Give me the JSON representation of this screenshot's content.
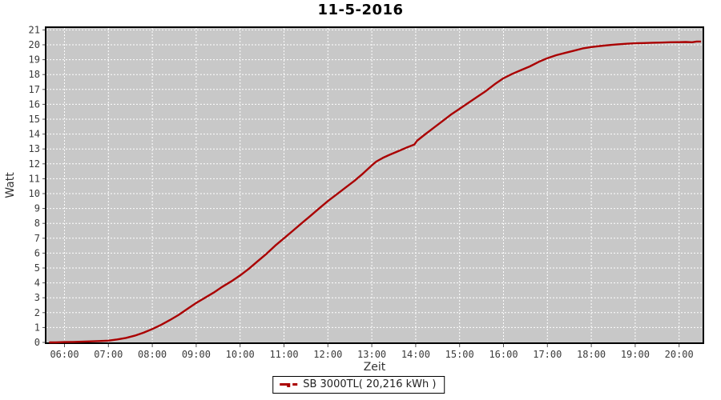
{
  "title": "11-5-2016",
  "axes": {
    "x_label": "Zeit",
    "y_label": "Watt"
  },
  "legend": {
    "label": "SB 3000TL( 20,216 kWh )"
  },
  "colors": {
    "outer_bg": "#ffffff",
    "plot_bg": "#c8c8c8",
    "grid": "#ffffff",
    "plot_border": "#000000",
    "series_line": "#aa0000",
    "tick_text": "#3a3a3a",
    "tick_mark": "#555555",
    "axis_label_text": "#333333"
  },
  "chart_data": {
    "type": "line",
    "title": "11-5-2016",
    "xlabel": "Zeit",
    "ylabel": "Watt",
    "grid": true,
    "legend_position": "bottom",
    "xlim_hours": [
      5.55,
      20.6
    ],
    "ylim": [
      0,
      21
    ],
    "y_ticks": [
      0,
      1,
      2,
      3,
      4,
      5,
      6,
      7,
      8,
      9,
      10,
      11,
      12,
      13,
      14,
      15,
      16,
      17,
      18,
      19,
      20,
      21
    ],
    "x_ticks": [
      {
        "hour": 6,
        "label": "06:00"
      },
      {
        "hour": 7,
        "label": "07:00"
      },
      {
        "hour": 8,
        "label": "08:00"
      },
      {
        "hour": 9,
        "label": "09:00"
      },
      {
        "hour": 10,
        "label": "10:00"
      },
      {
        "hour": 11,
        "label": "11:00"
      },
      {
        "hour": 12,
        "label": "12:00"
      },
      {
        "hour": 13,
        "label": "13:00"
      },
      {
        "hour": 14,
        "label": "14:00"
      },
      {
        "hour": 15,
        "label": "15:00"
      },
      {
        "hour": 16,
        "label": "16:00"
      },
      {
        "hour": 17,
        "label": "17:00"
      },
      {
        "hour": 18,
        "label": "18:00"
      },
      {
        "hour": 19,
        "label": "19:00"
      },
      {
        "hour": 20,
        "label": "20:00"
      }
    ],
    "series": [
      {
        "name": "SB 3000TL( 20,216 kWh )",
        "color": "#aa0000",
        "total_kwh_label": "20,216 kWh",
        "points": [
          [
            5.65,
            0.0
          ],
          [
            5.8,
            0.0
          ],
          [
            6.0,
            0.02
          ],
          [
            6.2,
            0.03
          ],
          [
            6.4,
            0.05
          ],
          [
            6.6,
            0.07
          ],
          [
            6.8,
            0.09
          ],
          [
            7.0,
            0.12
          ],
          [
            7.2,
            0.2
          ],
          [
            7.4,
            0.3
          ],
          [
            7.6,
            0.45
          ],
          [
            7.8,
            0.65
          ],
          [
            8.0,
            0.9
          ],
          [
            8.2,
            1.18
          ],
          [
            8.4,
            1.5
          ],
          [
            8.6,
            1.85
          ],
          [
            8.8,
            2.25
          ],
          [
            9.0,
            2.65
          ],
          [
            9.2,
            3.0
          ],
          [
            9.4,
            3.35
          ],
          [
            9.6,
            3.75
          ],
          [
            9.8,
            4.1
          ],
          [
            10.0,
            4.5
          ],
          [
            10.2,
            4.95
          ],
          [
            10.4,
            5.45
          ],
          [
            10.6,
            5.95
          ],
          [
            10.8,
            6.5
          ],
          [
            11.0,
            7.0
          ],
          [
            11.2,
            7.5
          ],
          [
            11.4,
            8.0
          ],
          [
            11.6,
            8.5
          ],
          [
            11.8,
            9.0
          ],
          [
            12.0,
            9.5
          ],
          [
            12.2,
            9.95
          ],
          [
            12.4,
            10.4
          ],
          [
            12.6,
            10.85
          ],
          [
            12.8,
            11.35
          ],
          [
            13.0,
            11.9
          ],
          [
            13.1,
            12.15
          ],
          [
            13.25,
            12.4
          ],
          [
            13.4,
            12.6
          ],
          [
            13.6,
            12.85
          ],
          [
            13.8,
            13.1
          ],
          [
            13.97,
            13.3
          ],
          [
            14.03,
            13.55
          ],
          [
            14.2,
            13.95
          ],
          [
            14.4,
            14.4
          ],
          [
            14.6,
            14.85
          ],
          [
            14.8,
            15.3
          ],
          [
            15.0,
            15.7
          ],
          [
            15.2,
            16.1
          ],
          [
            15.4,
            16.5
          ],
          [
            15.6,
            16.9
          ],
          [
            15.8,
            17.35
          ],
          [
            16.0,
            17.75
          ],
          [
            16.2,
            18.05
          ],
          [
            16.4,
            18.3
          ],
          [
            16.6,
            18.55
          ],
          [
            16.8,
            18.85
          ],
          [
            17.0,
            19.1
          ],
          [
            17.2,
            19.3
          ],
          [
            17.4,
            19.45
          ],
          [
            17.6,
            19.6
          ],
          [
            17.8,
            19.75
          ],
          [
            18.0,
            19.85
          ],
          [
            18.2,
            19.92
          ],
          [
            18.4,
            19.98
          ],
          [
            18.6,
            20.03
          ],
          [
            18.8,
            20.07
          ],
          [
            19.0,
            20.1
          ],
          [
            19.2,
            20.12
          ],
          [
            19.4,
            20.14
          ],
          [
            19.6,
            20.15
          ],
          [
            19.8,
            20.17
          ],
          [
            20.0,
            20.18
          ],
          [
            20.15,
            20.19
          ],
          [
            20.3,
            20.17
          ],
          [
            20.4,
            20.22
          ],
          [
            20.5,
            20.22
          ]
        ]
      }
    ]
  }
}
